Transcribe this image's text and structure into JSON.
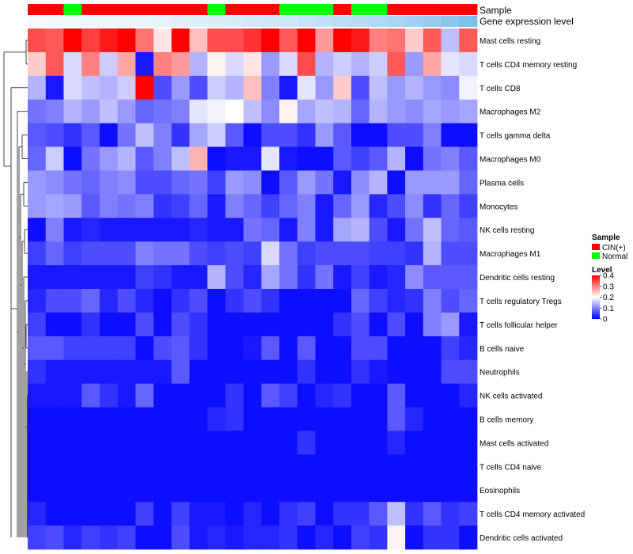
{
  "chart_data": {
    "type": "heatmap",
    "annotations": [
      {
        "name": "Sample",
        "colors": [
          "#FF0000",
          "#FF0000",
          "#00FF00",
          "#FF0000",
          "#FF0000",
          "#FF0000",
          "#FF0000",
          "#FF0000",
          "#FF0000",
          "#FF0000",
          "#00FF00",
          "#FF0000",
          "#FF0000",
          "#FF0000",
          "#00FF00",
          "#00FF00",
          "#00FF00",
          "#FF0000",
          "#00FF00",
          "#00FF00",
          "#FF0000",
          "#FF0000",
          "#FF0000",
          "#FF0000",
          "#FF0000"
        ]
      },
      {
        "name": "Gene expression level",
        "colors": [
          "#F4FAFD",
          "#F2F9FD",
          "#F0F8FC",
          "#EEF7FC",
          "#ECF6FC",
          "#E9F5FB",
          "#E6F4FB",
          "#E3F3FB",
          "#E0F1FA",
          "#DDF0FA",
          "#DAEEF9",
          "#D6ECF9",
          "#D2EAF8",
          "#CEE8F8",
          "#CAE6F7",
          "#C5E4F7",
          "#C0E1F6",
          "#BBDFF5",
          "#B5DCF5",
          "#AFD9F4",
          "#A8D5F3",
          "#A0D1F2",
          "#96CCF0",
          "#8AC6EE",
          "#7EC0EC"
        ]
      }
    ],
    "rows": [
      "Mast cells resting",
      "T cells CD4 memory resting",
      "T cells CD8",
      "Macrophages M2",
      "T cells gamma delta",
      "Macrophages M0",
      "Plasma cells",
      "Monocytes",
      "NK cells resting",
      "Macrophages M1",
      "Dendritic cells resting",
      "T cells regulatory  Tregs",
      "T cells follicular helper",
      "B cells naive",
      "Neutrophils",
      "NK cells activated",
      "B cells memory",
      "Mast cells activated",
      "T cells CD4 naive",
      "Eosinophils",
      "T cells CD4 memory activated",
      "Dendritic cells activated"
    ],
    "values": [
      [
        0.34,
        0.33,
        0.4,
        0.35,
        0.38,
        0.4,
        0.31,
        0.22,
        0.4,
        0.25,
        0.34,
        0.34,
        0.36,
        0.4,
        0.33,
        0.4,
        0.28,
        0.4,
        0.38,
        0.3,
        0.31,
        0.24,
        0.33,
        0.15,
        0.33
      ],
      [
        0.24,
        0.33,
        0.17,
        0.3,
        0.16,
        0.27,
        0.02,
        0.3,
        0.28,
        0.14,
        0.21,
        0.17,
        0.22,
        0.12,
        0.17,
        0.34,
        0.14,
        0.16,
        0.14,
        0.16,
        0.33,
        0.12,
        0.27,
        0.18,
        0.17
      ],
      [
        0.14,
        0.02,
        0.17,
        0.15,
        0.14,
        0.16,
        0.4,
        0.06,
        0.12,
        0.06,
        0.16,
        0.14,
        0.25,
        0.1,
        0.02,
        0.18,
        0.12,
        0.24,
        0.06,
        0.15,
        0.12,
        0.14,
        0.12,
        0.11,
        0.19
      ],
      [
        0.09,
        0.1,
        0.14,
        0.12,
        0.15,
        0.12,
        0.08,
        0.09,
        0.1,
        0.18,
        0.19,
        0.2,
        0.15,
        0.11,
        0.21,
        0.13,
        0.15,
        0.14,
        0.08,
        0.14,
        0.12,
        0.11,
        0.13,
        0.12,
        0.13
      ],
      [
        0.07,
        0.06,
        0.04,
        0.07,
        0.01,
        0.09,
        0.15,
        0.1,
        0.04,
        0.13,
        0.16,
        0.07,
        0.01,
        0.06,
        0.06,
        0.04,
        0.12,
        0.07,
        0.01,
        0.01,
        0.06,
        0.06,
        0.1,
        0.01,
        0.01
      ],
      [
        0.08,
        0.16,
        0.01,
        0.09,
        0.12,
        0.14,
        0.07,
        0.1,
        0.15,
        0.26,
        0.01,
        0.02,
        0.02,
        0.18,
        0.02,
        0.01,
        0.01,
        0.07,
        0.05,
        0.07,
        0.14,
        0.01,
        0.09,
        0.1,
        0.07
      ],
      [
        0.12,
        0.11,
        0.09,
        0.08,
        0.1,
        0.11,
        0.06,
        0.06,
        0.08,
        0.09,
        0.05,
        0.12,
        0.11,
        0.01,
        0.07,
        0.12,
        0.09,
        0.02,
        0.11,
        0.14,
        0.01,
        0.12,
        0.12,
        0.12,
        0.08
      ],
      [
        0.12,
        0.13,
        0.12,
        0.07,
        0.1,
        0.09,
        0.1,
        0.04,
        0.05,
        0.08,
        0.02,
        0.1,
        0.08,
        0.05,
        0.08,
        0.1,
        0.02,
        0.08,
        0.12,
        0.03,
        0.06,
        0.11,
        0.04,
        0.08,
        0.05
      ],
      [
        0.01,
        0.1,
        0.02,
        0.03,
        0.02,
        0.02,
        0.02,
        0.02,
        0.02,
        0.03,
        0.02,
        0.02,
        0.09,
        0.08,
        0.02,
        0.1,
        0.02,
        0.13,
        0.14,
        0.06,
        0.02,
        0.09,
        0.15,
        0.08,
        0.07
      ],
      [
        0.05,
        0.08,
        0.05,
        0.06,
        0.06,
        0.06,
        0.1,
        0.09,
        0.09,
        0.06,
        0.05,
        0.06,
        0.05,
        0.17,
        0.09,
        0.05,
        0.06,
        0.06,
        0.06,
        0.05,
        0.05,
        0.04,
        0.14,
        0.06,
        0.06
      ],
      [
        0.02,
        0.02,
        0.02,
        0.02,
        0.02,
        0.02,
        0.05,
        0.04,
        0.02,
        0.02,
        0.14,
        0.06,
        0.03,
        0.13,
        0.09,
        0.04,
        0.09,
        0.02,
        0.05,
        0.02,
        0.03,
        0.11,
        0.07,
        0.07,
        0.07
      ],
      [
        0.03,
        0.06,
        0.06,
        0.08,
        0.03,
        0.06,
        0.03,
        0.01,
        0.04,
        0.06,
        0.01,
        0.04,
        0.06,
        0.04,
        0.01,
        0.01,
        0.01,
        0.01,
        0.08,
        0.05,
        0.03,
        0.04,
        0.1,
        0.06,
        0.08
      ],
      [
        0.05,
        0.01,
        0.01,
        0.04,
        0.01,
        0.01,
        0.06,
        0.01,
        0.06,
        0.04,
        0.01,
        0.01,
        0.01,
        0.01,
        0.01,
        0.01,
        0.01,
        0.04,
        0.06,
        0.01,
        0.06,
        0.01,
        0.1,
        0.12,
        0.02
      ],
      [
        0.07,
        0.07,
        0.05,
        0.05,
        0.05,
        0.05,
        0.01,
        0.06,
        0.07,
        0.04,
        0.01,
        0.01,
        0.02,
        0.07,
        0.01,
        0.07,
        0.01,
        0.01,
        0.06,
        0.06,
        0.01,
        0.01,
        0.01,
        0.05,
        0.03
      ],
      [
        0.04,
        0.02,
        0.02,
        0.02,
        0.02,
        0.02,
        0.02,
        0.02,
        0.07,
        0.01,
        0.01,
        0.01,
        0.01,
        0.01,
        0.01,
        0.04,
        0.01,
        0.01,
        0.04,
        0.02,
        0.01,
        0.01,
        0.01,
        0.06,
        0.06
      ],
      [
        0.02,
        0.02,
        0.02,
        0.07,
        0.04,
        0.02,
        0.08,
        0.01,
        0.01,
        0.01,
        0.01,
        0.04,
        0.01,
        0.07,
        0.05,
        0.01,
        0.03,
        0.04,
        0.01,
        0.01,
        0.07,
        0.01,
        0.01,
        0.01,
        0.03
      ],
      [
        0.01,
        0.01,
        0.01,
        0.01,
        0.01,
        0.01,
        0.01,
        0.01,
        0.01,
        0.01,
        0.03,
        0.04,
        0.01,
        0.01,
        0.01,
        0.01,
        0.01,
        0.01,
        0.01,
        0.01,
        0.07,
        0.03,
        0.01,
        0.01,
        0.01
      ],
      [
        0.01,
        0.01,
        0.01,
        0.01,
        0.01,
        0.01,
        0.01,
        0.01,
        0.01,
        0.01,
        0.01,
        0.01,
        0.01,
        0.01,
        0.01,
        0.04,
        0.01,
        0.01,
        0.01,
        0.01,
        0.03,
        0.01,
        0.01,
        0.01,
        0.01
      ],
      [
        0.01,
        0.01,
        0.01,
        0.01,
        0.01,
        0.01,
        0.01,
        0.01,
        0.01,
        0.01,
        0.01,
        0.01,
        0.01,
        0.01,
        0.01,
        0.01,
        0.01,
        0.01,
        0.01,
        0.01,
        0.01,
        0.01,
        0.01,
        0.01,
        0.01
      ],
      [
        0.01,
        0.01,
        0.01,
        0.01,
        0.01,
        0.01,
        0.01,
        0.01,
        0.01,
        0.01,
        0.01,
        0.01,
        0.01,
        0.01,
        0.01,
        0.01,
        0.01,
        0.01,
        0.01,
        0.01,
        0.01,
        0.01,
        0.01,
        0.01,
        0.01
      ],
      [
        0.03,
        0.01,
        0.01,
        0.01,
        0.01,
        0.01,
        0.05,
        0.01,
        0.05,
        0.02,
        0.02,
        0.01,
        0.03,
        0.01,
        0.04,
        0.05,
        0.01,
        0.04,
        0.04,
        0.07,
        0.15,
        0.04,
        0.07,
        0.04,
        0.05
      ],
      [
        0.05,
        0.06,
        0.03,
        0.05,
        0.04,
        0.05,
        0.01,
        0.01,
        0.06,
        0.02,
        0.03,
        0.02,
        0.03,
        0.03,
        0.04,
        0.01,
        0.03,
        0.01,
        0.05,
        0.04,
        0.21,
        0.01,
        0.04,
        0.04,
        0.01
      ]
    ],
    "color_scale": {
      "min": 0,
      "mid": 0.2,
      "max": 0.4,
      "low": "#0000FF",
      "midColor": "#FFFFFF",
      "high": "#FF0000"
    },
    "legend": {
      "sample_title": "Sample",
      "sample_items": [
        {
          "label": "CIN(+)",
          "color": "#FF0000"
        },
        {
          "label": "Normal",
          "color": "#00FF00"
        }
      ],
      "level_title": "Level",
      "level_ticks": [
        "0.4",
        "0.3",
        "0.2",
        "0.1",
        "0"
      ],
      "level_tick_values": [
        0.4,
        0.3,
        0.2,
        0.1,
        0
      ],
      "position": "right"
    }
  }
}
